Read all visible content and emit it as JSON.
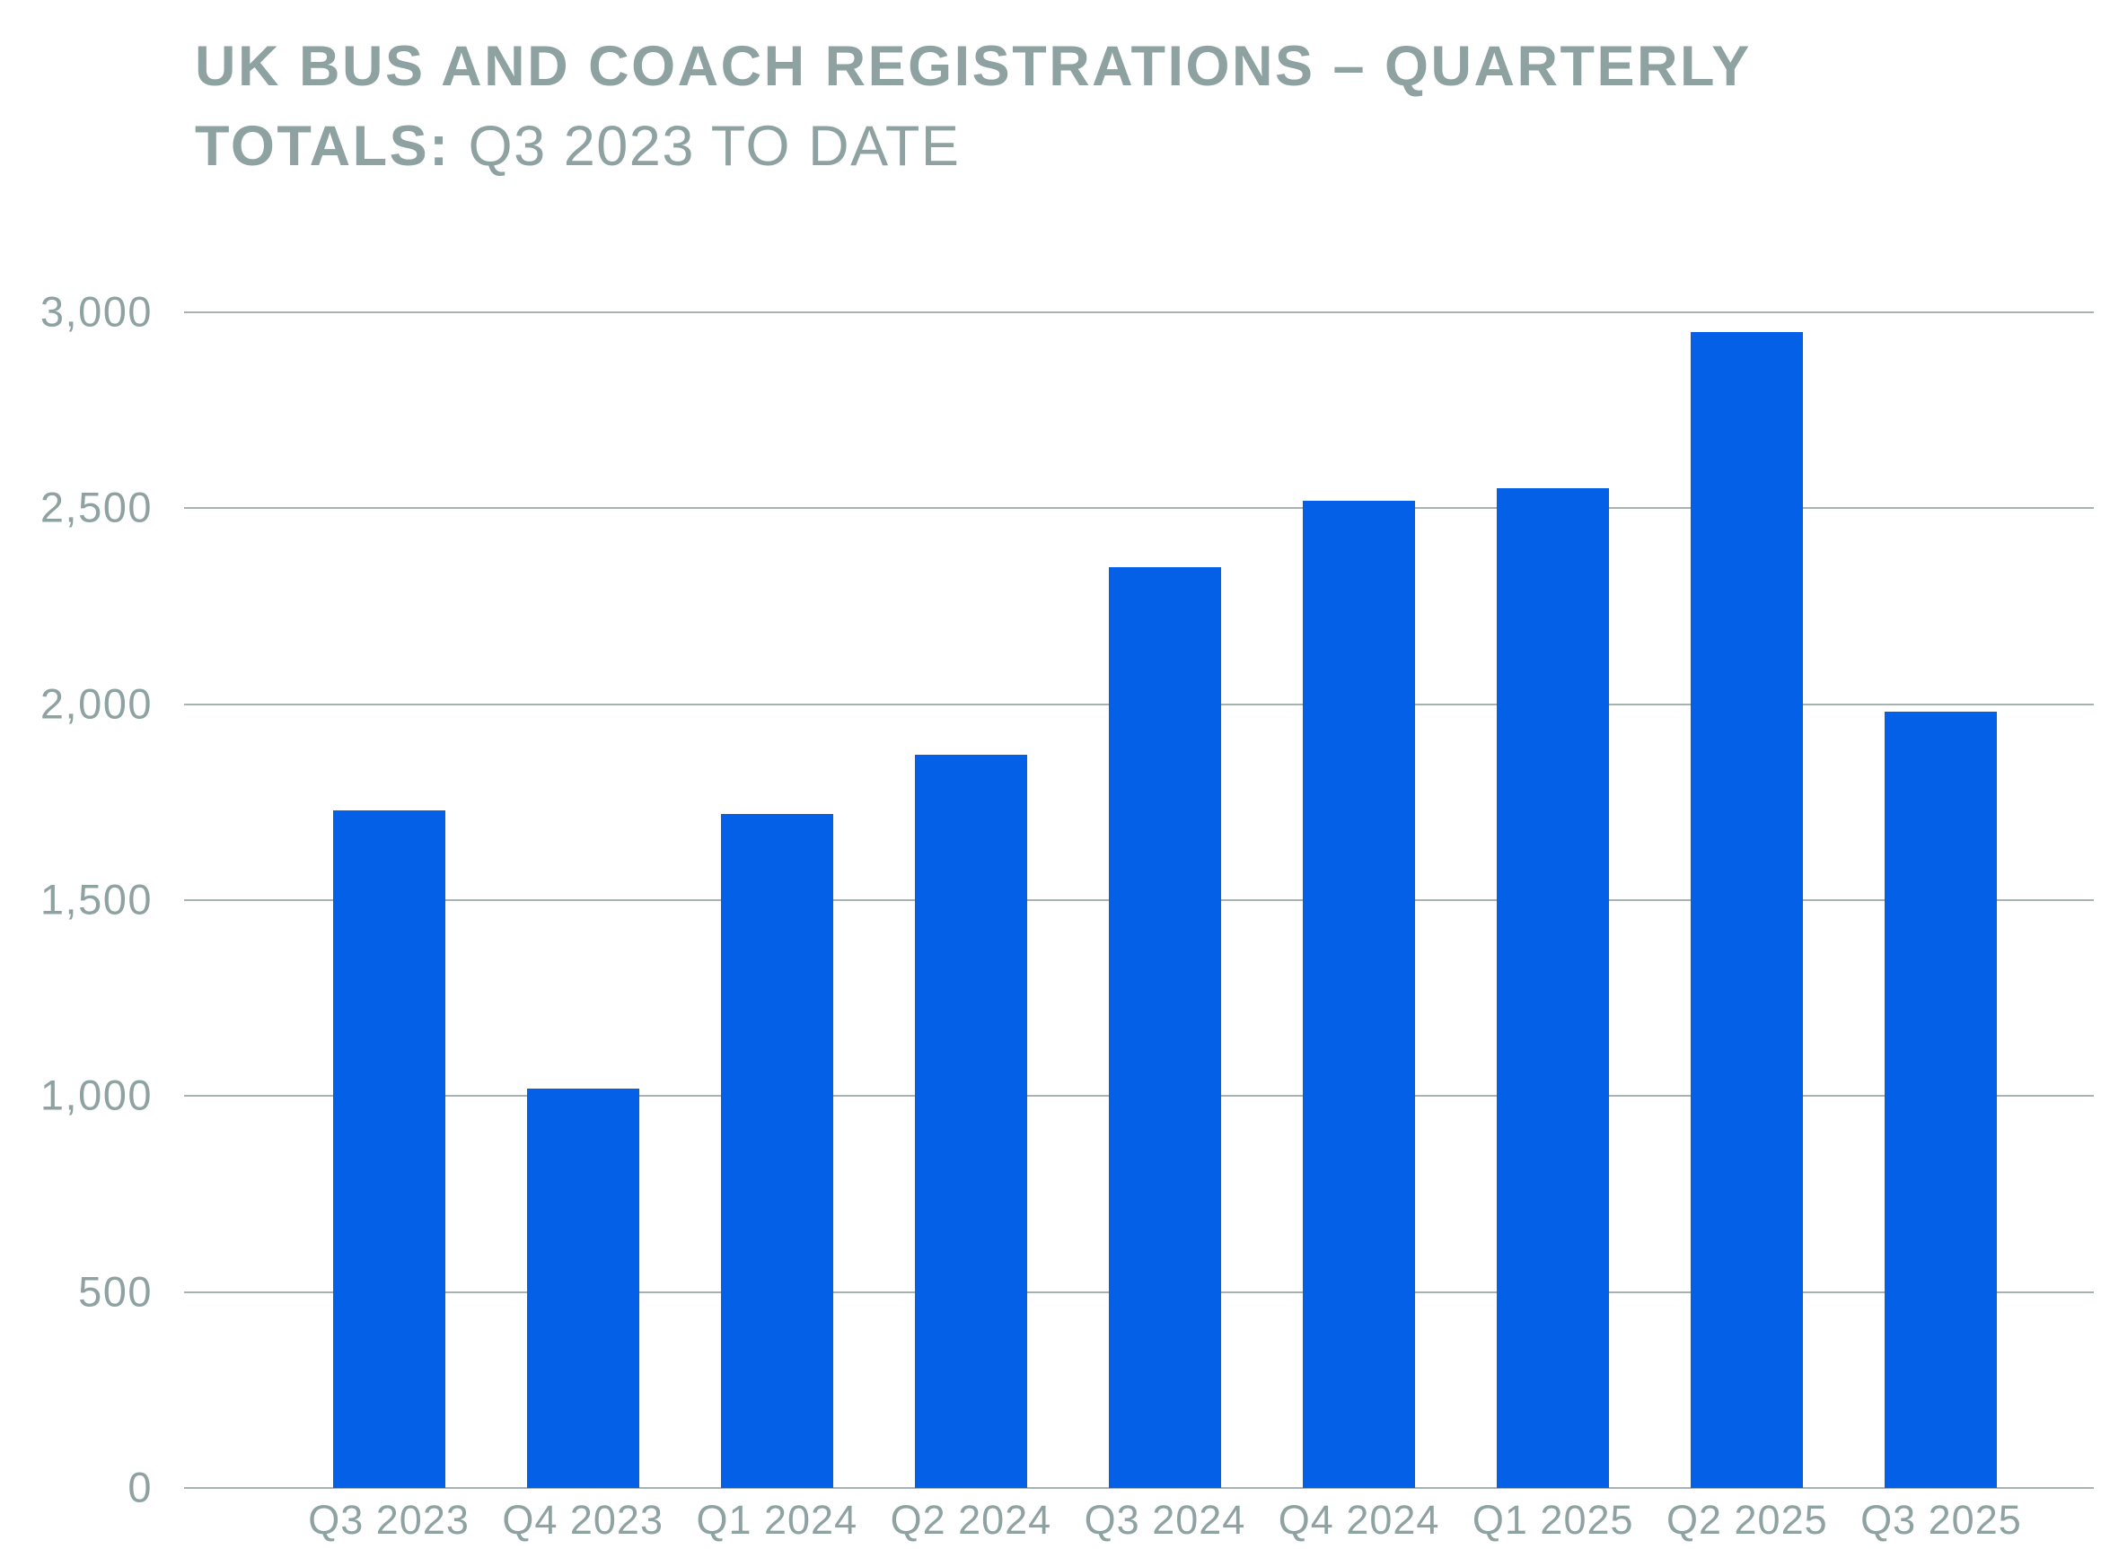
{
  "header": {
    "title_line1": "UK BUS AND COACH REGISTRATIONS – QUARTERLY",
    "title_line2_bold": "TOTALS:",
    "title_line2_regular": "Q3 2023 TO DATE"
  },
  "chart_data": {
    "type": "bar",
    "title": "UK BUS AND COACH REGISTRATIONS – QUARTERLY TOTALS: Q3 2023 TO DATE",
    "categories": [
      "Q3 2023",
      "Q4 2023",
      "Q1 2024",
      "Q2 2024",
      "Q3 2024",
      "Q4 2024",
      "Q1 2025",
      "Q2 2025",
      "Q3 2025"
    ],
    "values": [
      1730,
      1020,
      1720,
      1870,
      2350,
      2520,
      2550,
      2950,
      1980
    ],
    "xlabel": "",
    "ylabel": "",
    "ylim": [
      0,
      3000
    ],
    "yticks": [
      0,
      500,
      1000,
      1500,
      2000,
      2500,
      3000
    ],
    "ytick_labels": [
      "0",
      "500",
      "1,000",
      "1,500",
      "2,000",
      "2,500",
      "3,000"
    ],
    "grid": true,
    "legend": false,
    "bar_color": "#0560E8",
    "text_color": "#8FA2A2",
    "gridline_color": "#A6B3B3"
  }
}
